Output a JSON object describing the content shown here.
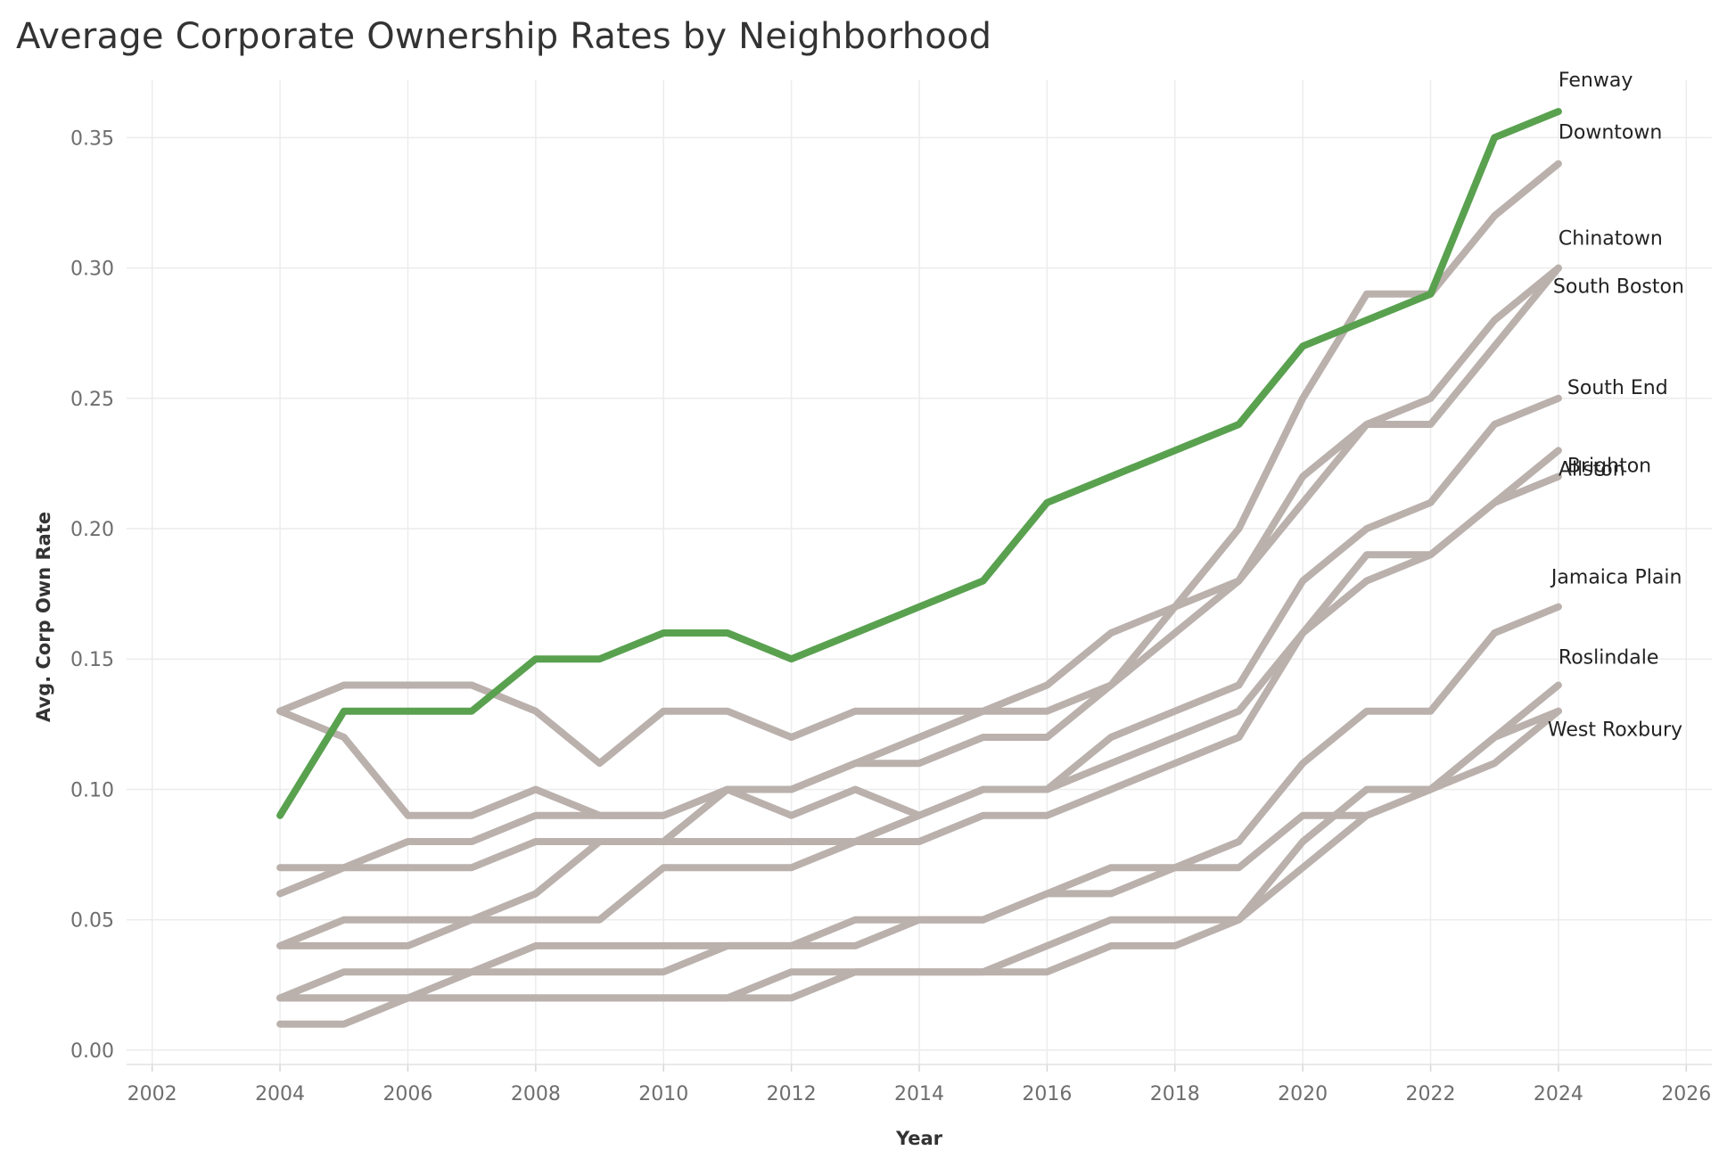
{
  "chart_data": {
    "type": "line",
    "title": "Average Corporate Ownership Rates by Neighborhood",
    "xlabel": "Year",
    "ylabel": "Avg. Corp Own Rate",
    "xlim": [
      2001.6,
      2026.4
    ],
    "ylim": [
      -0.0055,
      0.372
    ],
    "x_ticks": [
      "2002",
      "2004",
      "2006",
      "2008",
      "2010",
      "2012",
      "2014",
      "2016",
      "2018",
      "2020",
      "2022",
      "2024",
      "2026"
    ],
    "y_ticks": [
      "0.00",
      "0.05",
      "0.10",
      "0.15",
      "0.20",
      "0.25",
      "0.30",
      "0.35"
    ],
    "grid": true,
    "legend": "direct labels at line ends (right)",
    "highlight_color": "#59a14f",
    "base_color": "#bab0ac",
    "x": [
      2004,
      2005,
      2006,
      2007,
      2008,
      2009,
      2010,
      2011,
      2012,
      2013,
      2014,
      2015,
      2016,
      2017,
      2018,
      2019,
      2020,
      2021,
      2022,
      2023,
      2024
    ],
    "series": [
      {
        "name": "Downtown",
        "highlight": false,
        "values": [
          0.13,
          0.14,
          0.14,
          0.14,
          0.13,
          0.11,
          0.13,
          0.13,
          0.12,
          0.13,
          0.13,
          0.13,
          0.13,
          0.14,
          0.17,
          0.2,
          0.25,
          0.29,
          0.29,
          0.32,
          0.34
        ]
      },
      {
        "name": "Chinatown",
        "highlight": false,
        "values": [
          0.13,
          0.12,
          0.09,
          0.09,
          0.1,
          0.09,
          0.09,
          0.1,
          0.1,
          0.11,
          0.12,
          0.13,
          0.14,
          0.16,
          0.17,
          0.18,
          0.22,
          0.24,
          0.25,
          0.28,
          0.3
        ]
      },
      {
        "name": "Allston",
        "highlight": false,
        "values": [
          0.07,
          0.07,
          0.07,
          0.07,
          0.08,
          0.08,
          0.08,
          0.08,
          0.08,
          0.08,
          0.08,
          0.09,
          0.09,
          0.1,
          0.11,
          0.12,
          0.16,
          0.19,
          0.19,
          0.21,
          0.23
        ]
      },
      {
        "name": "South End",
        "highlight": false,
        "values": [
          0.06,
          0.07,
          0.08,
          0.08,
          0.09,
          0.09,
          0.09,
          0.1,
          0.09,
          0.1,
          0.09,
          0.1,
          0.1,
          0.12,
          0.13,
          0.14,
          0.18,
          0.2,
          0.21,
          0.24,
          0.25
        ]
      },
      {
        "name": "Brighton",
        "highlight": false,
        "values": [
          0.04,
          0.05,
          0.05,
          0.05,
          0.05,
          0.05,
          0.07,
          0.07,
          0.07,
          0.08,
          0.09,
          0.1,
          0.1,
          0.11,
          0.12,
          0.13,
          0.16,
          0.18,
          0.19,
          0.21,
          0.22
        ]
      },
      {
        "name": "South Boston",
        "highlight": false,
        "values": [
          0.04,
          0.04,
          0.04,
          0.05,
          0.06,
          0.08,
          0.08,
          0.1,
          0.1,
          0.11,
          0.11,
          0.12,
          0.12,
          0.14,
          0.16,
          0.18,
          0.21,
          0.24,
          0.24,
          0.27,
          0.3
        ]
      },
      {
        "name": "Jamaica Plain",
        "highlight": false,
        "values": [
          0.02,
          0.03,
          0.03,
          0.03,
          0.04,
          0.04,
          0.04,
          0.04,
          0.04,
          0.05,
          0.05,
          0.05,
          0.06,
          0.07,
          0.07,
          0.08,
          0.11,
          0.13,
          0.13,
          0.16,
          0.17
        ]
      },
      {
        "name": "Roslindale",
        "highlight": false,
        "values": [
          0.02,
          0.02,
          0.02,
          0.03,
          0.03,
          0.03,
          0.03,
          0.04,
          0.04,
          0.04,
          0.05,
          0.05,
          0.06,
          0.06,
          0.07,
          0.07,
          0.09,
          0.09,
          0.1,
          0.12,
          0.14
        ]
      },
      {
        "name": "West Roxbury",
        "highlight": false,
        "values": [
          0.01,
          0.01,
          0.02,
          0.02,
          0.02,
          0.02,
          0.02,
          0.02,
          0.03,
          0.03,
          0.03,
          0.03,
          0.04,
          0.05,
          0.05,
          0.05,
          0.07,
          0.09,
          0.1,
          0.11,
          0.13
        ]
      },
      {
        "name": "",
        "highlight": false,
        "values": [
          0.02,
          0.02,
          0.02,
          0.02,
          0.02,
          0.02,
          0.02,
          0.02,
          0.02,
          0.03,
          0.03,
          0.03,
          0.03,
          0.04,
          0.04,
          0.05,
          0.08,
          0.1,
          0.1,
          0.12,
          0.13
        ]
      },
      {
        "name": "Fenway",
        "highlight": true,
        "values": [
          0.09,
          0.13,
          0.13,
          0.13,
          0.15,
          0.15,
          0.16,
          0.16,
          0.15,
          0.16,
          0.17,
          0.18,
          0.21,
          0.22,
          0.23,
          0.24,
          0.27,
          0.28,
          0.29,
          0.35,
          0.36
        ]
      }
    ]
  }
}
